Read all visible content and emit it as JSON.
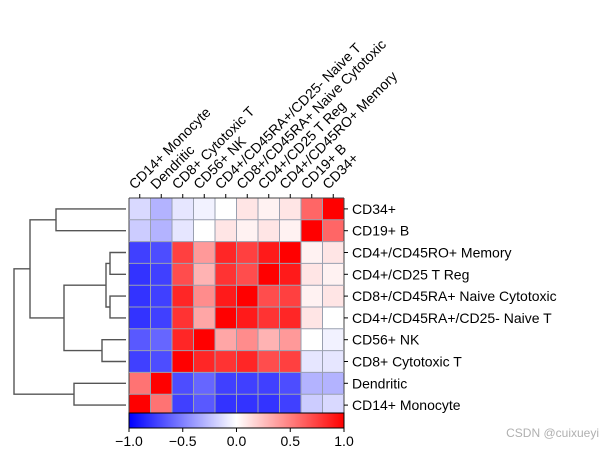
{
  "chart_data": {
    "type": "heatmap",
    "title": "",
    "rows": [
      "CD34+",
      "CD19+ B",
      "CD4+/CD45RO+ Memory",
      "CD4+/CD25 T Reg",
      "CD8+/CD45RA+ Naive Cytotoxic",
      "CD4+/CD45RA+/CD25- Naive T",
      "CD56+ NK",
      "CD8+ Cytotoxic T",
      "Dendritic",
      "CD14+ Monocyte"
    ],
    "columns": [
      "CD14+ Monocyte",
      "Dendritic",
      "CD8+ Cytotoxic T",
      "CD56+ NK",
      "CD4+/CD45RA+/CD25- Naive T",
      "CD8+/CD45RA+ Naive Cytotoxic",
      "CD4+/CD25 T Reg",
      "CD4+/CD45RO+ Memory",
      "CD19+ B",
      "CD34+"
    ],
    "values": [
      [
        -0.15,
        -0.3,
        -0.1,
        -0.05,
        0.0,
        0.1,
        0.05,
        0.1,
        0.6,
        1.0
      ],
      [
        -0.2,
        -0.3,
        -0.1,
        0.0,
        0.1,
        0.05,
        0.1,
        0.05,
        1.0,
        0.6
      ],
      [
        -0.75,
        -0.7,
        0.75,
        0.4,
        0.85,
        0.75,
        0.9,
        1.0,
        0.05,
        0.1
      ],
      [
        -0.8,
        -0.75,
        0.7,
        0.3,
        0.8,
        0.7,
        1.0,
        0.9,
        0.1,
        0.05
      ],
      [
        -0.8,
        -0.75,
        0.85,
        0.45,
        0.9,
        1.0,
        0.7,
        0.75,
        0.05,
        0.1
      ],
      [
        -0.8,
        -0.75,
        0.8,
        0.35,
        1.0,
        0.9,
        0.8,
        0.85,
        0.1,
        0.0
      ],
      [
        -0.65,
        -0.6,
        0.85,
        1.0,
        0.35,
        0.45,
        0.3,
        0.4,
        0.0,
        -0.05
      ],
      [
        -0.75,
        -0.7,
        1.0,
        0.85,
        0.8,
        0.85,
        0.7,
        0.75,
        -0.1,
        -0.1
      ],
      [
        0.55,
        1.0,
        -0.7,
        -0.6,
        -0.75,
        -0.75,
        -0.75,
        -0.7,
        -0.3,
        -0.3
      ],
      [
        1.0,
        0.55,
        -0.75,
        -0.65,
        -0.8,
        -0.8,
        -0.8,
        -0.75,
        -0.2,
        -0.15
      ]
    ],
    "colorbar": {
      "min": -1.0,
      "max": 1.0,
      "ticks": [
        -1.0,
        -0.5,
        0.0,
        0.5,
        1.0
      ],
      "tick_labels": [
        "−1.0",
        "−0.5",
        "0.0",
        "0.5",
        "1.0"
      ],
      "colors": {
        "low": "#0000ff",
        "mid": "#ffffff",
        "high": "#ff0000"
      }
    },
    "dendrogram": "rows, left side",
    "grid": true,
    "legend": "bottom colorbar"
  },
  "watermark": "CSDN @cuixueyi"
}
